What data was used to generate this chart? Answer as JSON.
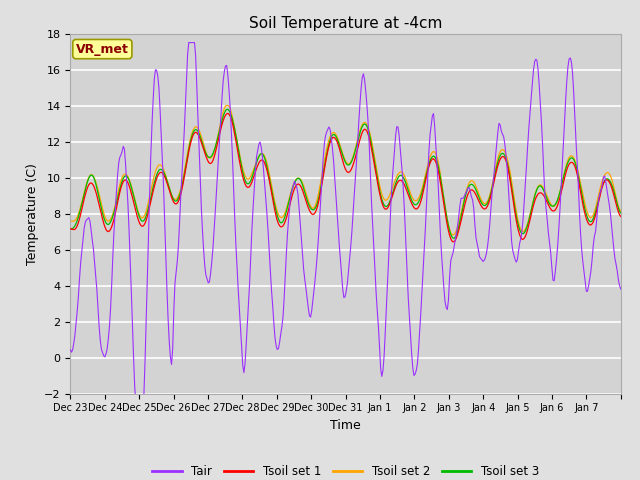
{
  "title": "Soil Temperature at -4cm",
  "xlabel": "Time",
  "ylabel": "Temperature (C)",
  "ylim": [
    -2,
    18
  ],
  "yticks": [
    -2,
    0,
    2,
    4,
    6,
    8,
    10,
    12,
    14,
    16,
    18
  ],
  "xtick_labels": [
    "Dec 23",
    "Dec 24",
    "Dec 25",
    "Dec 26",
    "Dec 27",
    "Dec 28",
    "Dec 29",
    "Dec 30",
    "Dec 31",
    "Jan 1",
    "Jan 2",
    "Jan 3",
    "Jan 4",
    "Jan 5",
    "Jan 6",
    "Jan 7"
  ],
  "colors": {
    "Tair": "#9B30FF",
    "Tsoil1": "#FF0000",
    "Tsoil2": "#FFA500",
    "Tsoil3": "#00BB00"
  },
  "legend_labels": [
    "Tair",
    "Tsoil set 1",
    "Tsoil set 2",
    "Tsoil set 3"
  ],
  "annotation_text": "VR_met",
  "annotation_color": "#8B0000",
  "annotation_bg": "#FFFF99",
  "bg_color": "#E0E0E0",
  "plot_bg_color": "#D3D3D3",
  "title_fontsize": 11,
  "axis_fontsize": 9,
  "n_points": 480
}
